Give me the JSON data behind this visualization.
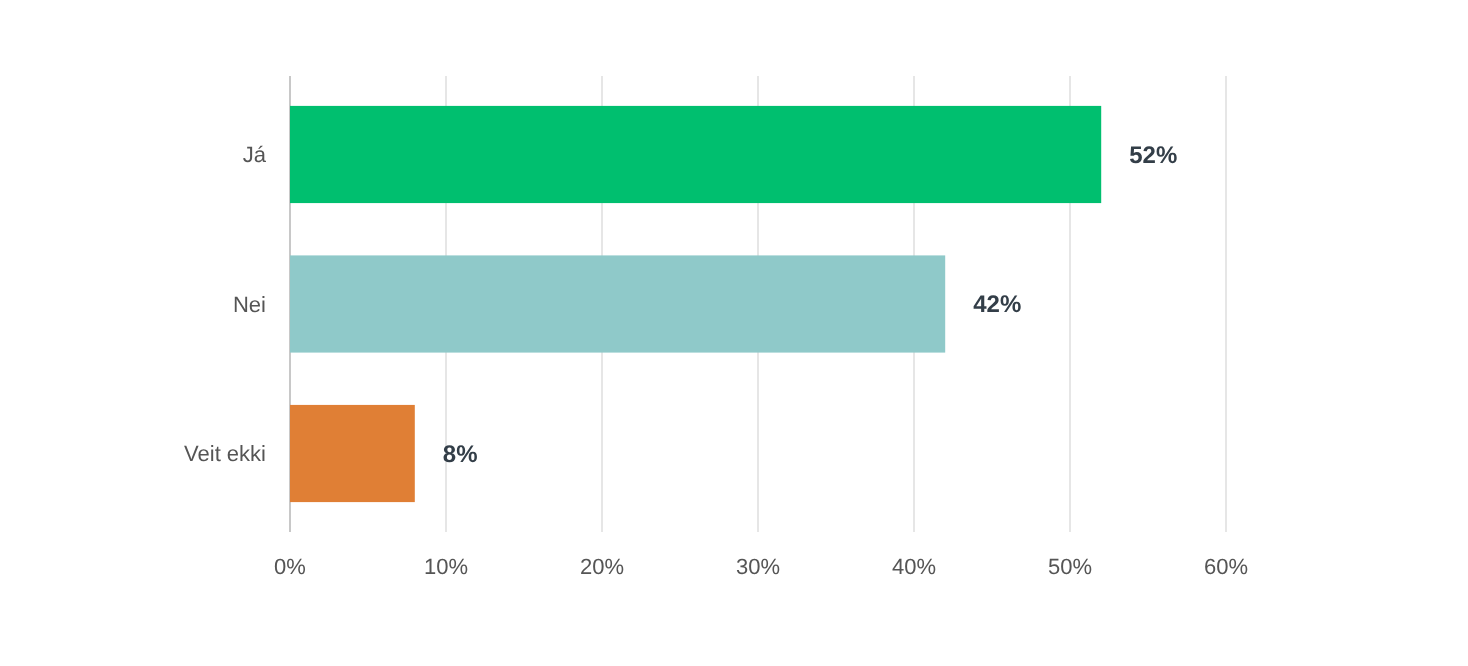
{
  "chart_data": {
    "type": "bar",
    "orientation": "horizontal",
    "categories": [
      "Já",
      "Nei",
      "Veit ekki"
    ],
    "values": [
      52,
      42,
      8
    ],
    "colors": [
      "#00bf6f",
      "#8fc9c9",
      "#e07f35"
    ],
    "value_labels": [
      "52%",
      "42%",
      "8%"
    ],
    "xlim": [
      0,
      60
    ],
    "xticks": [
      {
        "value": 0,
        "label": "0%"
      },
      {
        "value": 10,
        "label": "10%"
      },
      {
        "value": 20,
        "label": "20%"
      },
      {
        "value": 30,
        "label": "30%"
      },
      {
        "value": 40,
        "label": "40%"
      },
      {
        "value": 50,
        "label": "50%"
      },
      {
        "value": 60,
        "label": "60%"
      }
    ],
    "grid": "x"
  }
}
